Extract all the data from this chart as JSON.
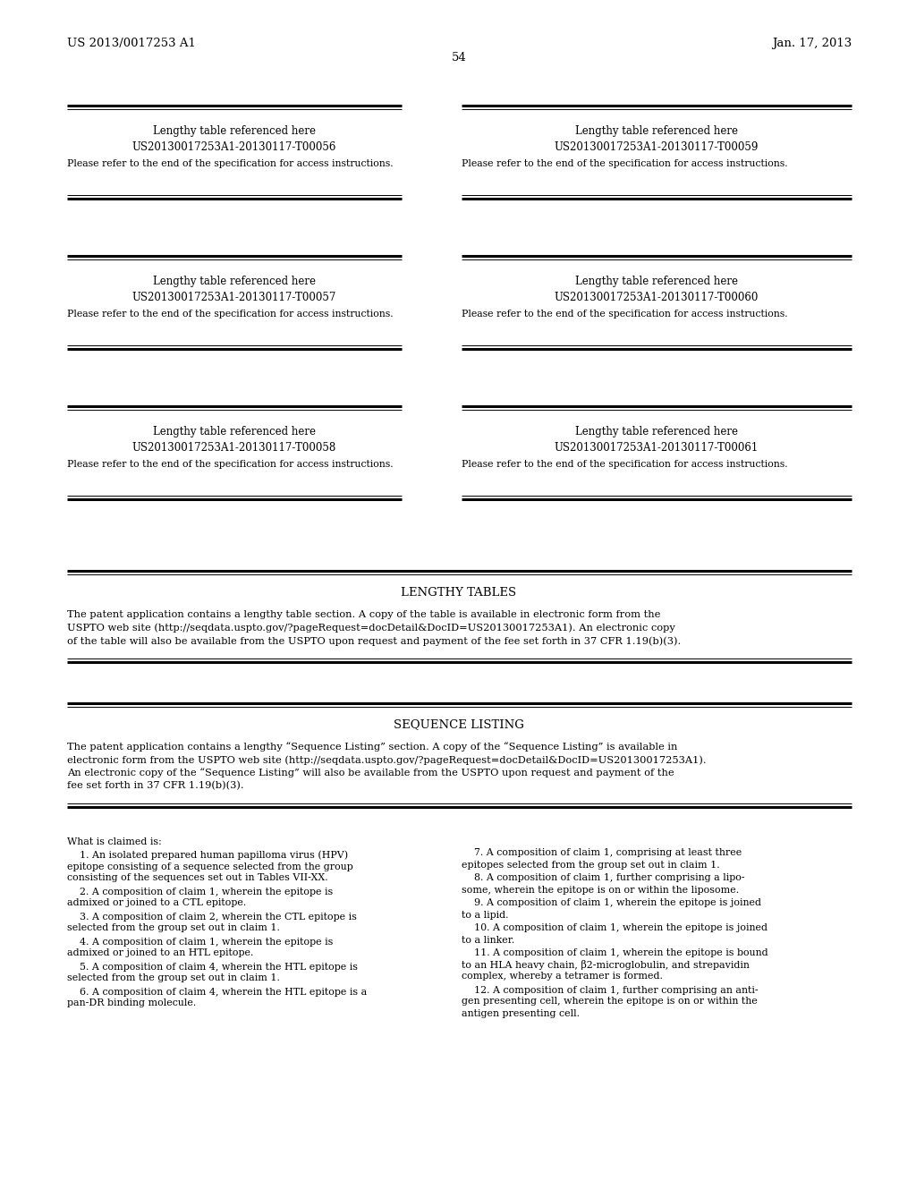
{
  "background_color": "#ffffff",
  "header_left": "US 2013/0017253 A1",
  "header_right": "Jan. 17, 2013",
  "page_number": "54",
  "boxes": [
    {
      "title": "Lengthy table referenced here",
      "id": "US20130017253A1-20130117-T00056",
      "note": "Please refer to the end of the specification for access instructions.",
      "col": 0
    },
    {
      "title": "Lengthy table referenced here",
      "id": "US20130017253A1-20130117-T00059",
      "note": "Please refer to the end of the specification for access instructions.",
      "col": 1
    },
    {
      "title": "Lengthy table referenced here",
      "id": "US20130017253A1-20130117-T00057",
      "note": "Please refer to the end of the specification for access instructions.",
      "col": 0
    },
    {
      "title": "Lengthy table referenced here",
      "id": "US20130017253A1-20130117-T00060",
      "note": "Please refer to the end of the specification for access instructions.",
      "col": 1
    },
    {
      "title": "Lengthy table referenced here",
      "id": "US20130017253A1-20130117-T00058",
      "note": "Please refer to the end of the specification for access instructions.",
      "col": 0
    },
    {
      "title": "Lengthy table referenced here",
      "id": "US20130017253A1-20130117-T00061",
      "note": "Please refer to the end of the specification for access instructions.",
      "col": 1
    }
  ],
  "lengthy_tables_title": "LENGTHY TABLES",
  "lengthy_tables_text_lines": [
    "The patent application contains a lengthy table section. A copy of the table is available in electronic form from the",
    "USPTO web site (http://seqdata.uspto.gov/?pageRequest=docDetail&DocID=US20130017253A1). An electronic copy",
    "of the table will also be available from the USPTO upon request and payment of the fee set forth in 37 CFR 1.19(b)(3)."
  ],
  "sequence_listing_title": "SEQUENCE LISTING",
  "sequence_listing_text_lines": [
    "The patent application contains a lengthy “Sequence Listing” section. A copy of the “Sequence Listing” is available in",
    "electronic form from the USPTO web site (http://seqdata.uspto.gov/?pageRequest=docDetail&DocID=US20130017253A1).",
    "An electronic copy of the “Sequence Listing” will also be available from the USPTO upon request and payment of the",
    "fee set forth in 37 CFR 1.19(b)(3)."
  ],
  "claims_left_lines": [
    [
      "What is claimed is:"
    ],
    [
      "    1. An isolated prepared human papilloma virus (HPV)",
      "epitope consisting of a sequence selected from the group",
      "consisting of the sequences set out in Tables VII-XX."
    ],
    [
      "    2. A composition of claim 1, wherein the epitope is",
      "admixed or joined to a CTL epitope."
    ],
    [
      "    3. A composition of claim 2, wherein the CTL epitope is",
      "selected from the group set out in claim 1."
    ],
    [
      "    4. A composition of claim 1, wherein the epitope is",
      "admixed or joined to an HTL epitope."
    ],
    [
      "    5. A composition of claim 4, wherein the HTL epitope is",
      "selected from the group set out in claim 1."
    ],
    [
      "    6. A composition of claim 4, wherein the HTL epitope is a",
      "pan-DR binding molecule."
    ]
  ],
  "claims_right_lines": [
    [
      "    7. A composition of claim 1, comprising at least three",
      "epitopes selected from the group set out in claim 1."
    ],
    [
      "    8. A composition of claim 1, further comprising a lipo-",
      "some, wherein the epitope is on or within the liposome."
    ],
    [
      "    9. A composition of claim 1, wherein the epitope is joined",
      "to a lipid."
    ],
    [
      "    10. A composition of claim 1, wherein the epitope is joined",
      "to a linker."
    ],
    [
      "    11. A composition of claim 1, wherein the epitope is bound",
      "to an HLA heavy chain, β2-microglobulin, and strepavidin",
      "complex, whereby a tetramer is formed."
    ],
    [
      "    12. A composition of claim 1, further comprising an anti-",
      "gen presenting cell, wherein the epitope is on or within the",
      "antigen presenting cell."
    ]
  ]
}
